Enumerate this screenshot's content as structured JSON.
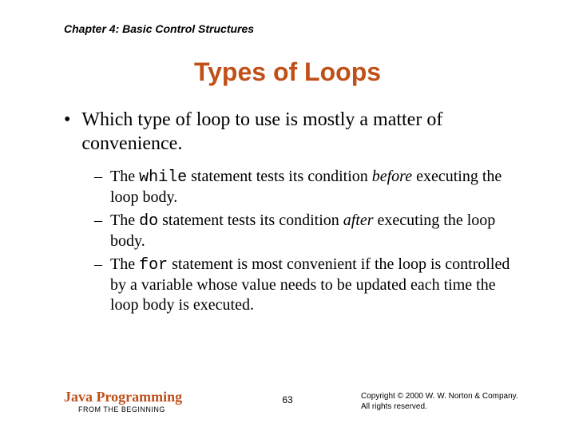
{
  "header": {
    "chapter": "Chapter 4: Basic Control Structures"
  },
  "title": "Types of Loops",
  "content": {
    "main_bullet": "Which type of loop to use is mostly a matter of convenience.",
    "sub_bullets": [
      {
        "pre": "The ",
        "mono": "while",
        "mid": " statement tests its condition ",
        "ital": "before",
        "post": " executing the loop body."
      },
      {
        "pre": "The ",
        "mono": "do",
        "mid": " statement tests its condition ",
        "ital": "after",
        "post": " executing the loop body."
      },
      {
        "pre": "The ",
        "mono": "for",
        "mid": " statement is most convenient if the loop is controlled by a variable whose value needs to be updated each time the loop body is executed.",
        "ital": "",
        "post": ""
      }
    ]
  },
  "footer": {
    "book_title": "Java Programming",
    "book_subtitle": "FROM THE BEGINNING",
    "page_number": "63",
    "copyright_line1": "Copyright © 2000 W. W. Norton & Company.",
    "copyright_line2": "All rights reserved."
  },
  "styling": {
    "title_color": "#c05018",
    "text_color": "#000000",
    "background_color": "#ffffff",
    "title_fontsize": 32,
    "body_fontsize": 24,
    "sub_fontsize": 20,
    "header_fontsize": 14,
    "footer_fontsize": 10
  }
}
